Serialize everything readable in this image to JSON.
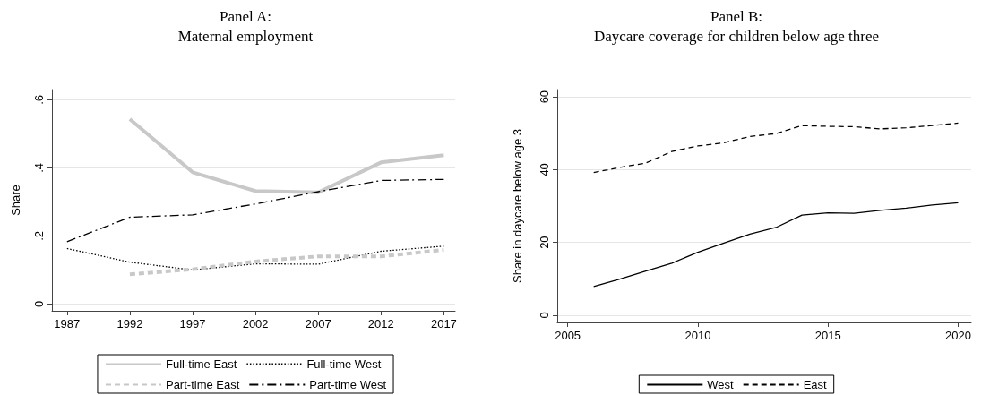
{
  "chart_data": [
    {
      "type": "line",
      "title": "Panel A:\nMaternal employment",
      "ylabel": "Share",
      "xlim": [
        1985.8,
        2017.9
      ],
      "xticks": [
        1987,
        1992,
        1997,
        2002,
        2007,
        2012,
        2017
      ],
      "ylim": [
        -0.02,
        0.63
      ],
      "yticks": [
        {
          "value": 0,
          "label": "0"
        },
        {
          "value": 0.2,
          "label": ".2"
        },
        {
          "value": 0.4,
          "label": ".4"
        },
        {
          "value": 0.6,
          "label": ".6"
        }
      ],
      "grid": "y",
      "legend": "bottom",
      "marker": "none",
      "series": [
        {
          "name": "Full-time East",
          "color": "#c8c8c8",
          "line_style": "solid",
          "x": [
            1992,
            1997,
            2002,
            2007,
            2012,
            2017
          ],
          "values": [
            0.543,
            0.387,
            0.332,
            0.328,
            0.416,
            0.437
          ]
        },
        {
          "name": "Full-time West",
          "color": "#000000",
          "line_style": "dotted",
          "x": [
            1987,
            1992,
            1997,
            2002,
            2007,
            2012,
            2017
          ],
          "values": [
            0.163,
            0.123,
            0.1,
            0.118,
            0.117,
            0.155,
            0.17
          ]
        },
        {
          "name": "Part-time East",
          "color": "#c8c8c8",
          "line_style": "dashed",
          "x": [
            1992,
            1997,
            2002,
            2007,
            2012,
            2017
          ],
          "values": [
            0.087,
            0.102,
            0.125,
            0.14,
            0.14,
            0.159
          ]
        },
        {
          "name": "Part-time West",
          "color": "#000000",
          "line_style": "dashdot",
          "x": [
            1987,
            1992,
            1997,
            2002,
            2007,
            2012,
            2017
          ],
          "values": [
            0.183,
            0.255,
            0.262,
            0.294,
            0.33,
            0.363,
            0.366
          ]
        }
      ]
    },
    {
      "type": "line",
      "title": "Panel B:\nDaycare coverage for children below age three",
      "ylabel": "Share in daycare below age 3",
      "xlim": [
        2004.6,
        2020.5
      ],
      "xticks": [
        2005,
        2010,
        2015,
        2020
      ],
      "ylim": [
        -2,
        62
      ],
      "yticks": [
        0,
        20,
        40,
        60
      ],
      "grid": "y",
      "legend": "bottom",
      "marker": "none",
      "x": [
        2006,
        2007,
        2008,
        2009,
        2010,
        2011,
        2012,
        2013,
        2014,
        2015,
        2016,
        2017,
        2018,
        2019,
        2020
      ],
      "series": [
        {
          "name": "West",
          "color": "#000000",
          "line_style": "solid",
          "values": [
            7.9,
            9.9,
            12.1,
            14.3,
            17.3,
            19.8,
            22.3,
            24.1,
            27.5,
            28.1,
            28.0,
            28.8,
            29.4,
            30.3,
            30.9
          ]
        },
        {
          "name": "East",
          "color": "#000000",
          "line_style": "dashed",
          "values": [
            39.2,
            40.6,
            41.8,
            45.0,
            46.5,
            47.4,
            49.1,
            49.9,
            52.1,
            51.9,
            51.8,
            51.2,
            51.5,
            52.1,
            52.8
          ]
        }
      ]
    }
  ]
}
